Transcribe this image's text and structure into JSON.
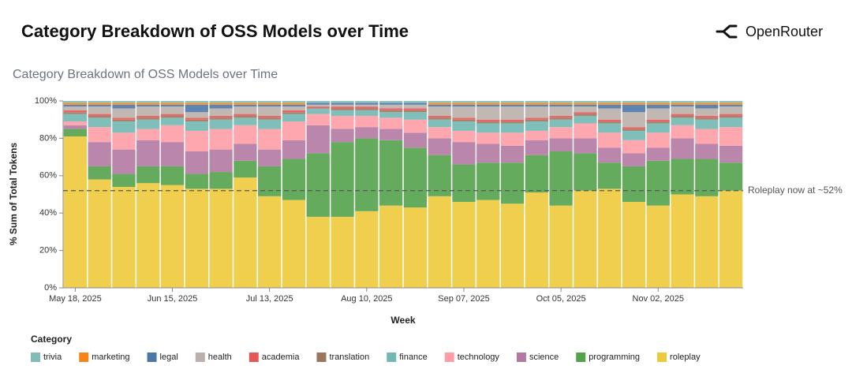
{
  "header": {
    "title": "Category Breakdown of OSS Models over Time",
    "brand": "OpenRouter"
  },
  "chart_data": {
    "type": "stacked-bar",
    "title": "Category Breakdown of OSS Models over Time",
    "x_label": "Week",
    "y_label": "% Sum of Total Tokens",
    "legend_title": "Category",
    "categories": [
      "May 18, 2025",
      null,
      null,
      null,
      "Jun 15, 2025",
      null,
      null,
      null,
      "Jul 13, 2025",
      null,
      null,
      null,
      "Aug 10, 2025",
      null,
      null,
      null,
      "Sep 07, 2025",
      null,
      null,
      null,
      "Oct 05, 2025",
      null,
      null,
      null,
      "Nov 02, 2025",
      null,
      null,
      null
    ],
    "ylim": [
      0,
      100
    ],
    "yticks": [
      {
        "value": 0,
        "label": "0%"
      },
      {
        "value": 20,
        "label": "20%"
      },
      {
        "value": 40,
        "label": "40%"
      },
      {
        "value": 60,
        "label": "60%"
      },
      {
        "value": 80,
        "label": "80%"
      },
      {
        "value": 100,
        "label": "100%"
      }
    ],
    "grid": false,
    "series": [
      {
        "name": "roleplay",
        "color": "#eeca3b",
        "values": [
          81,
          58,
          54,
          56,
          55,
          53,
          53,
          59,
          49,
          47,
          38,
          38,
          41,
          44,
          43,
          49,
          46,
          47,
          45,
          51,
          44,
          52,
          53,
          46,
          44,
          50,
          49,
          52
        ]
      },
      {
        "name": "programming",
        "color": "#54a24b",
        "values": [
          4,
          7,
          7,
          9,
          10,
          8,
          9,
          9,
          16,
          22,
          34,
          40,
          39,
          35,
          32,
          22,
          20,
          20,
          22,
          20,
          29,
          20,
          14,
          19,
          24,
          19,
          20,
          15
        ]
      },
      {
        "name": "science",
        "color": "#b279a2",
        "values": [
          2,
          13,
          13,
          14,
          13,
          12,
          12,
          9,
          9,
          10,
          15,
          7,
          6,
          6,
          8,
          9,
          12,
          10,
          9,
          8,
          7,
          8,
          8,
          7,
          7,
          11,
          8,
          9
        ]
      },
      {
        "name": "technology",
        "color": "#ff9da6",
        "values": [
          2,
          8,
          9,
          6,
          9,
          11,
          11,
          10,
          11,
          10,
          6,
          7,
          6,
          6,
          7,
          6,
          6,
          6,
          7,
          5,
          6,
          8,
          8,
          7,
          8,
          7,
          8,
          10
        ]
      },
      {
        "name": "finance",
        "color": "#72b7b2",
        "values": [
          4,
          5,
          6,
          5,
          4,
          5,
          5,
          4,
          5,
          4,
          3,
          3,
          3,
          3,
          4,
          4,
          5,
          5,
          5,
          5,
          4,
          4,
          5,
          5,
          5,
          4,
          5,
          5
        ]
      },
      {
        "name": "translation",
        "color": "#9d755d",
        "values": [
          1,
          1,
          1,
          1,
          1,
          1,
          1,
          1,
          1,
          1,
          0,
          1,
          1,
          1,
          1,
          1,
          1,
          1,
          1,
          1,
          1,
          1,
          1,
          1,
          1,
          1,
          1,
          1
        ]
      },
      {
        "name": "academia",
        "color": "#e45756",
        "values": [
          1,
          1,
          1,
          1,
          1,
          1,
          1,
          1,
          1,
          1,
          1,
          1,
          1,
          1,
          1,
          1,
          1,
          1,
          1,
          1,
          1,
          1,
          1,
          1,
          1,
          1,
          1,
          1
        ]
      },
      {
        "name": "health",
        "color": "#bab0ac",
        "values": [
          2,
          4,
          5,
          5,
          4,
          3,
          4,
          4,
          5,
          2,
          1,
          1,
          1,
          2,
          2,
          5,
          6,
          7,
          7,
          6,
          5,
          3,
          6,
          8,
          6,
          4,
          4,
          4
        ]
      },
      {
        "name": "legal",
        "color": "#4c78a8",
        "values": [
          1,
          1,
          2,
          1,
          1,
          4,
          2,
          1,
          1,
          1,
          1,
          1,
          1,
          1,
          1,
          1,
          1,
          1,
          1,
          1,
          1,
          1,
          2,
          4,
          2,
          1,
          2,
          1
        ]
      },
      {
        "name": "marketing",
        "color": "#f58518",
        "values": [
          1,
          1,
          1,
          1,
          1,
          1,
          1,
          1,
          1,
          1,
          0,
          0,
          0,
          0,
          0,
          1,
          1,
          1,
          1,
          1,
          1,
          1,
          1,
          1,
          1,
          1,
          1,
          1
        ]
      },
      {
        "name": "trivia",
        "color": "#83bcb6",
        "values": [
          1,
          1,
          1,
          1,
          1,
          1,
          1,
          1,
          1,
          1,
          1,
          1,
          1,
          1,
          1,
          1,
          1,
          1,
          1,
          1,
          1,
          1,
          1,
          1,
          1,
          1,
          1,
          1
        ]
      }
    ],
    "annotation": {
      "value": 52,
      "text": "Roleplay now at ~52%"
    }
  }
}
